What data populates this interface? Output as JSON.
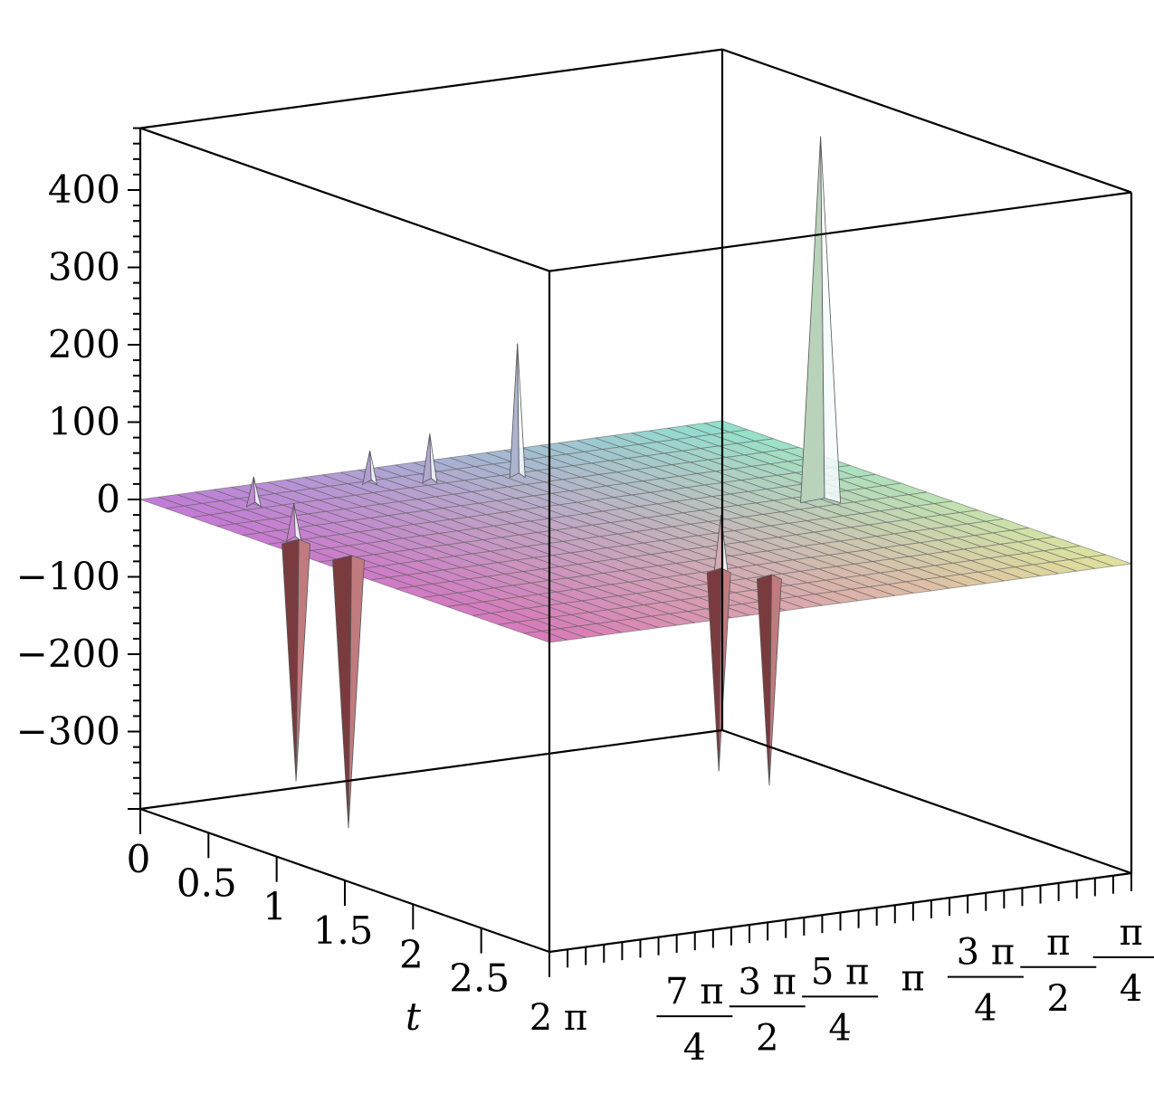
{
  "chart_data": {
    "type": "surface3d",
    "title": "",
    "z_axis": {
      "ticks": [
        400,
        300,
        200,
        100,
        0,
        -100,
        -200,
        -300
      ],
      "labels": [
        "400",
        "300",
        "200",
        "100",
        "0",
        "−100",
        "−200",
        "−300"
      ],
      "range": [
        -400,
        480
      ]
    },
    "t_axis": {
      "label": "t",
      "ticks": [
        0,
        0.5,
        1,
        1.5,
        2,
        2.5
      ],
      "labels": [
        "0",
        "0.5",
        "1",
        "1.5",
        "2",
        "2.5"
      ],
      "range": [
        0,
        3
      ]
    },
    "theta_axis": {
      "label": "",
      "range": [
        0,
        6.2832
      ],
      "ticks": [
        {
          "value": 6.2832,
          "num": "2 π",
          "den": ""
        },
        {
          "value": 5.4978,
          "num": "7 π",
          "den": "4"
        },
        {
          "value": 4.7124,
          "num": "3 π",
          "den": "2"
        },
        {
          "value": 3.927,
          "num": "5 π",
          "den": "4"
        },
        {
          "value": 3.1416,
          "num": "π",
          "den": ""
        },
        {
          "value": 2.3562,
          "num": "3 π",
          "den": "4"
        },
        {
          "value": 1.5708,
          "num": "π",
          "den": "2"
        },
        {
          "value": 0.7854,
          "num": "π",
          "den": "4"
        }
      ]
    },
    "surface_baseline": 0,
    "spikes": [
      {
        "t": 0.95,
        "theta": 6.0,
        "z": -310
      },
      {
        "t": 1.3,
        "theta": 5.95,
        "z": -350
      },
      {
        "t": 2.25,
        "theta": 3.35,
        "z": -260
      },
      {
        "t": 2.45,
        "theta": 3.1,
        "z": -270
      },
      {
        "t": 1.4,
        "theta": 1.0,
        "z": 470
      },
      {
        "t": 0.4,
        "theta": 2.8,
        "z": 170
      },
      {
        "t": 2.3,
        "theta": 3.4,
        "z": 75
      },
      {
        "t": 0.3,
        "theta": 3.6,
        "z": 60
      },
      {
        "t": 0.2,
        "theta": 4.1,
        "z": 40
      },
      {
        "t": 0.9,
        "theta": 5.95,
        "z": 45
      },
      {
        "t": 0.3,
        "theta": 5.5,
        "z": 35
      }
    ],
    "colors": {
      "near_left": "#d879b8",
      "far_left": "#c27ad8",
      "near_right": "#e2e39a",
      "far_right": "#8fe3d0",
      "mesh": "#5a5a5a",
      "box": "#000000"
    },
    "grid": true,
    "legend": "none"
  }
}
